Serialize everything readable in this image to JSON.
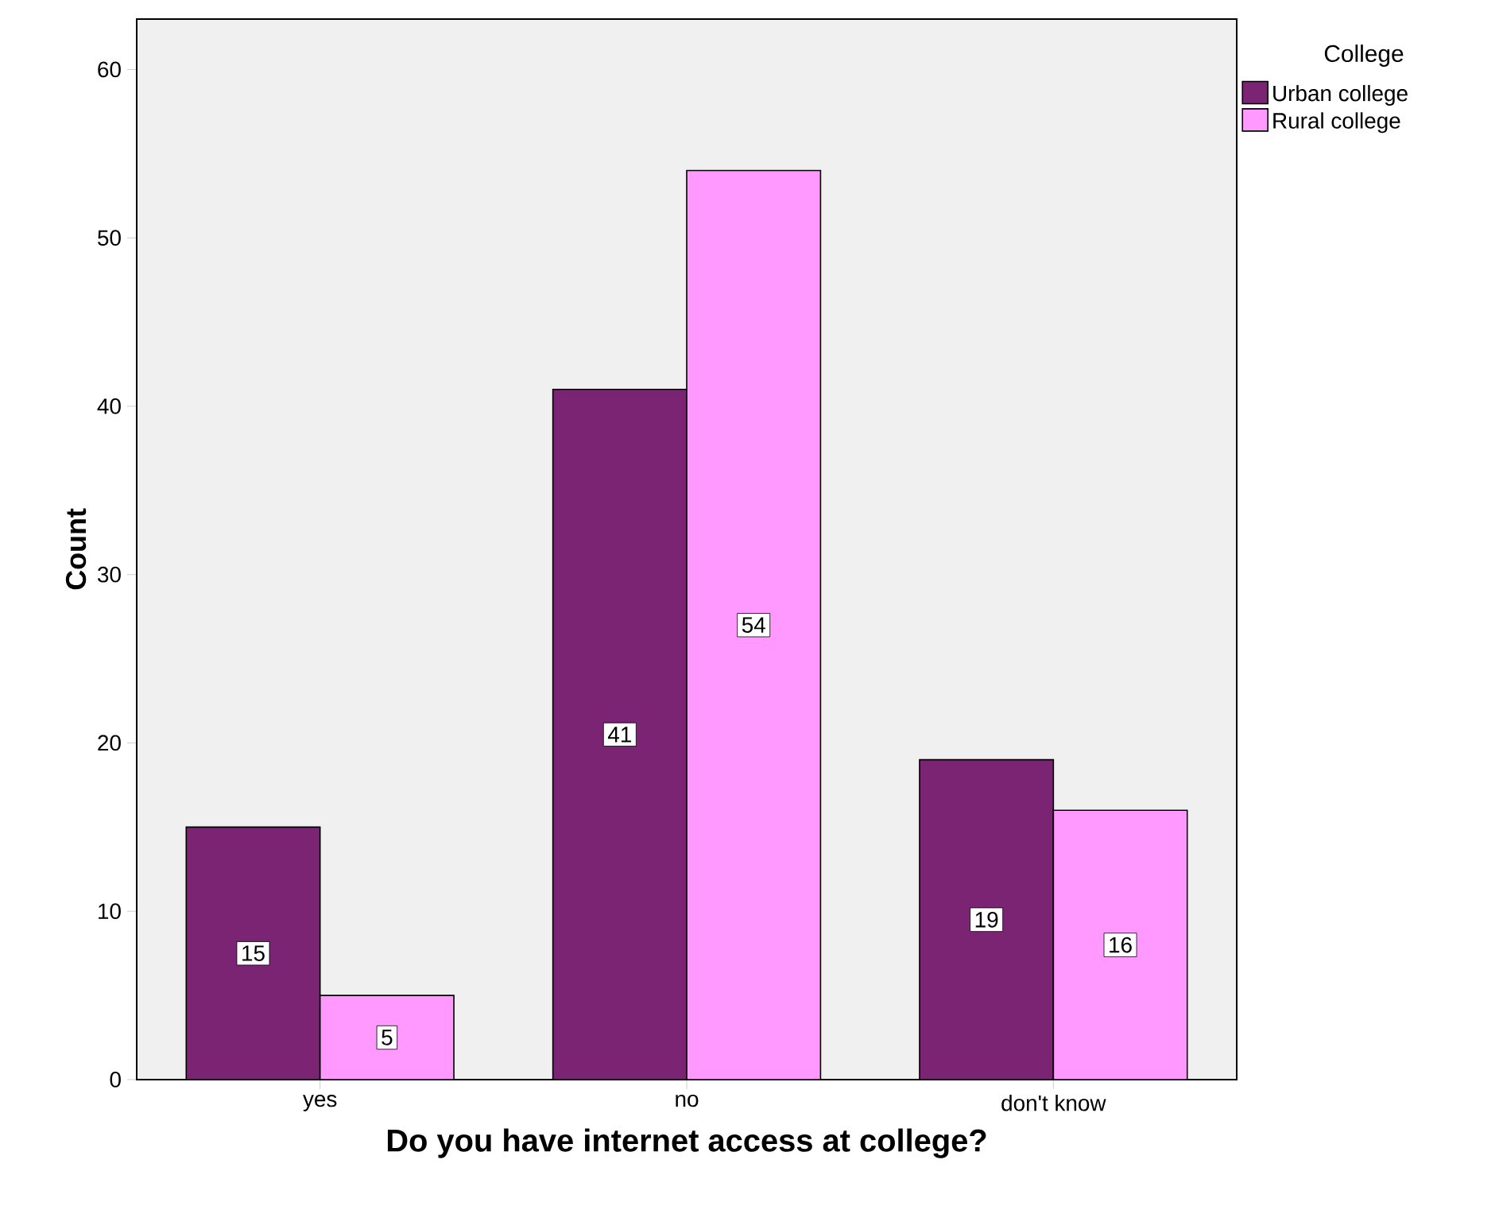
{
  "chart_data": {
    "type": "bar",
    "xlabel": "Do you have internet access at college?",
    "ylabel": "Count",
    "legend_title": "College",
    "categories": [
      "yes",
      "no",
      "don't know"
    ],
    "series": [
      {
        "name": "Urban college",
        "color": "#7b2474",
        "values": [
          15,
          41,
          19
        ]
      },
      {
        "name": "Rural college",
        "color": "#ff99ff",
        "values": [
          5,
          54,
          16
        ]
      }
    ],
    "ylim": [
      0,
      63
    ],
    "yticks": [
      0,
      10,
      20,
      30,
      40,
      50,
      60
    ],
    "data_labels": true,
    "grid": false,
    "legend": "top right"
  }
}
